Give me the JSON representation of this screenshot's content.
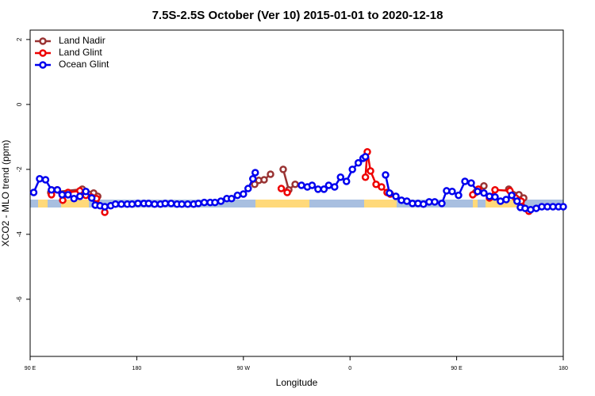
{
  "chart_data": {
    "type": "line",
    "title": "7.5S-2.5S October (Ver 10)   2015-01-01 to 2020-12-18",
    "x_label": "Longitude",
    "y_label": "XCO2 - MLO trend (ppm)",
    "xlim": [
      90,
      540
    ],
    "xticks": [
      {
        "value": 90,
        "label": "90 E"
      },
      180,
      {
        "value": 270,
        "label": "90 W"
      },
      {
        "value": 360,
        "label": "0"
      },
      {
        "value": 450,
        "label": "90 E"
      },
      {
        "value": 540,
        "label": "180"
      }
    ],
    "ylim": [
      -7.76,
      2.29
    ],
    "yticks": [
      2,
      0,
      -2,
      -4,
      -6
    ],
    "legend": "top-left",
    "series": [
      {
        "name": "Land Nadir",
        "color": "#993333",
        "x": [
          107.4,
          134,
          143.6,
          147,
          200,
          279.5,
          283,
          287.5,
          292.9,
          298,
          303.6,
          308.3,
          313.7,
          400,
          466,
          473,
          485,
          494,
          502.6,
          506.6
        ],
        "values": [
          -2.71,
          -2.61,
          -2.73,
          -2.83,
          null,
          -2.46,
          -2.34,
          -2.32,
          -2.15,
          null,
          -2.0,
          -2.63,
          -2.46,
          null,
          -2.71,
          -2.51,
          null,
          -2.61,
          -2.78,
          -2.88
        ]
      },
      {
        "name": "Land Glint",
        "color": "#ee0000",
        "x": [
          108,
          112.8,
          117.5,
          122,
          132,
          137,
          141.6,
          146,
          153,
          250,
          302,
          307,
          340,
          373,
          374.6,
          377.3,
          382,
          386.6,
          391.3,
          394,
          430,
          463.6,
          468.3,
          477.7,
          482.4,
          495,
          499.8,
          504.5,
          511
        ],
        "values": [
          -2.78,
          -2.63,
          -2.95,
          -2.71,
          -2.66,
          -2.8,
          -2.85,
          -2.9,
          -3.32,
          null,
          -2.59,
          -2.71,
          null,
          -2.24,
          -1.46,
          -2.05,
          -2.46,
          -2.54,
          -2.71,
          -2.76,
          null,
          -2.78,
          -2.61,
          -2.88,
          -2.63,
          -2.66,
          -2.88,
          -2.98,
          -3.29
        ]
      },
      {
        "name": "Ocean Glint",
        "color": "#0000ee",
        "x": [
          93,
          98,
          103,
          108,
          113,
          117,
          122,
          127,
          132,
          137,
          142,
          145,
          149,
          153,
          158,
          162,
          167,
          172,
          176,
          181,
          186,
          190,
          195,
          200,
          204,
          209,
          214,
          218,
          223,
          228,
          232,
          237,
          242,
          246,
          251,
          256,
          260,
          265,
          270,
          274,
          278,
          280,
          300,
          319,
          324,
          328,
          333,
          338,
          342,
          347,
          352,
          357,
          362,
          367,
          371,
          373,
          380,
          390,
          393.3,
          398.7,
          403.4,
          408,
          412.7,
          417.4,
          422,
          426.8,
          431.5,
          437.5,
          441.5,
          446.2,
          451.6,
          457,
          462.3,
          467.7,
          473,
          477.7,
          482.4,
          487,
          491.8,
          496.5,
          501,
          503.8,
          507.8,
          512.5,
          517.2,
          521.9,
          526.6,
          531.3,
          536,
          540
        ],
        "values": [
          -2.71,
          -2.29,
          -2.32,
          -2.63,
          -2.63,
          -2.78,
          -2.78,
          -2.9,
          -2.83,
          -2.68,
          -2.88,
          -3.1,
          -3.12,
          -3.15,
          -3.12,
          -3.07,
          -3.07,
          -3.07,
          -3.07,
          -3.05,
          -3.05,
          -3.05,
          -3.07,
          -3.07,
          -3.05,
          -3.05,
          -3.07,
          -3.07,
          -3.07,
          -3.07,
          -3.05,
          -3.02,
          -3.02,
          -3.02,
          -2.98,
          -2.9,
          -2.9,
          -2.8,
          -2.76,
          -2.59,
          -2.29,
          -2.1,
          null,
          -2.49,
          -2.54,
          -2.49,
          -2.61,
          -2.61,
          -2.49,
          -2.54,
          -2.24,
          -2.37,
          -2.0,
          -1.8,
          -1.66,
          -1.61,
          null,
          -2.17,
          -2.73,
          -2.83,
          -2.95,
          -2.98,
          -3.05,
          -3.05,
          -3.07,
          -3.0,
          -3.0,
          -3.05,
          -2.66,
          -2.68,
          -2.8,
          -2.37,
          -2.42,
          -2.68,
          -2.73,
          -2.83,
          -2.85,
          -2.98,
          -2.93,
          -2.8,
          -2.98,
          -3.17,
          -3.2,
          -3.24,
          -3.2,
          -3.15,
          -3.15,
          -3.15,
          -3.15,
          -3.15
        ]
      }
    ]
  }
}
